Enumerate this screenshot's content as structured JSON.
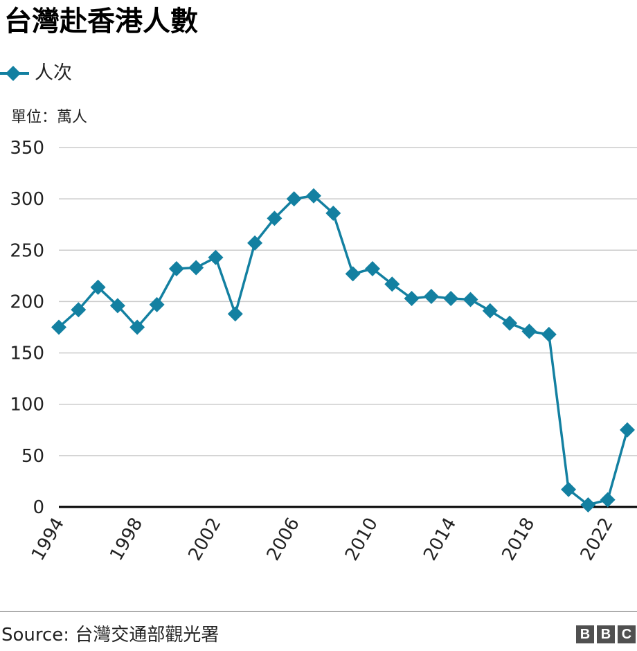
{
  "title": "台灣赴香港人數",
  "unit_label": "單位：萬人",
  "source": "Source: 台灣交通部觀光署",
  "logo": [
    "B",
    "B",
    "C"
  ],
  "colors": {
    "series": "#1380A1",
    "grid": "#cbcbcb",
    "axis": "#000000",
    "text": "#222222",
    "logo": "#505050"
  },
  "chart_data": {
    "type": "line",
    "series": [
      {
        "name": "人次",
        "marker": "diamond",
        "x": [
          1994,
          1995,
          1996,
          1997,
          1998,
          1999,
          2000,
          2001,
          2002,
          2003,
          2004,
          2005,
          2006,
          2007,
          2008,
          2009,
          2010,
          2011,
          2012,
          2013,
          2014,
          2015,
          2016,
          2017,
          2018,
          2019,
          2020,
          2021,
          2022,
          2023
        ],
        "values": [
          175,
          192,
          214,
          196,
          175,
          197,
          232,
          233,
          243,
          188,
          257,
          281,
          300,
          303,
          286,
          227,
          232,
          217,
          203,
          205,
          203,
          202,
          191,
          179,
          171,
          168,
          17,
          2,
          7,
          75
        ]
      }
    ],
    "ylim": [
      0,
      350
    ],
    "yticks": [
      0,
      50,
      100,
      150,
      200,
      250,
      300,
      350
    ],
    "xlim": [
      1994,
      2023
    ],
    "xticks": [
      1994,
      1998,
      2002,
      2006,
      2010,
      2014,
      2018,
      2022
    ],
    "grid": true,
    "legend_position": "top-left"
  }
}
